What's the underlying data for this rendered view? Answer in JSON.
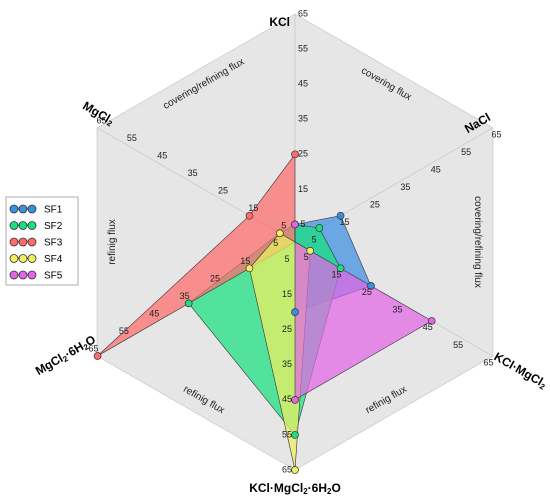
{
  "chart_data": {
    "type": "radar",
    "axes": [
      {
        "label": "KCl"
      },
      {
        "label": "NaCl"
      },
      {
        "label": "KCl·MgCl",
        "sub": "2"
      },
      {
        "label": "KCl·MgCl",
        "sub": "2",
        "rest": "·6H",
        "sub2": "2",
        "rest2": "O"
      },
      {
        "label": "MgCl",
        "sub": "2",
        "rest": "·6H",
        "sub2": "2",
        "rest2": "O"
      },
      {
        "label": "MgCl",
        "sub": "2"
      }
    ],
    "ticks": [
      "5",
      "15",
      "25",
      "35",
      "45",
      "55",
      "65"
    ],
    "tick_values": [
      5,
      15,
      25,
      35,
      45,
      55,
      65
    ],
    "range": [
      0,
      65
    ],
    "regions": [
      "covering flux",
      "covering/refining flux",
      "refinig flux",
      "refinig flux",
      "refinig flux",
      "covering/refining flux"
    ],
    "series": [
      {
        "name": "SF1",
        "color": "#3b8fe0",
        "values": [
          5,
          15,
          25,
          20,
          0,
          0
        ]
      },
      {
        "name": "SF2",
        "color": "#19e080",
        "values": [
          5,
          8,
          15,
          55,
          35,
          5
        ]
      },
      {
        "name": "SF3",
        "color": "#ff6b6b",
        "values": [
          25,
          0,
          0,
          0,
          65,
          15
        ]
      },
      {
        "name": "SF4",
        "color": "#f0f060",
        "values": [
          0,
          0,
          5,
          65,
          15,
          5
        ]
      },
      {
        "name": "SF5",
        "color": "#e066e6",
        "values": [
          5,
          0,
          45,
          45,
          0,
          0
        ]
      }
    ]
  }
}
